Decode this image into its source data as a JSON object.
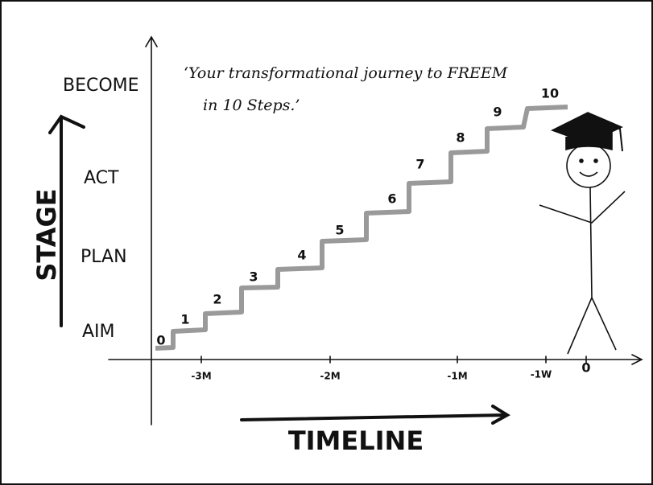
{
  "quote": [
    "‘Your transformational journey to FREEM",
    "in 10 Steps.’"
  ],
  "y_axis": {
    "title": "STAGE",
    "labels": [
      "BECOME",
      "ACT",
      "PLAN",
      "AIM"
    ]
  },
  "x_axis": {
    "title": "TIMELINE",
    "labels": [
      "-3M",
      "-2M",
      "-1M",
      "-1W",
      "0"
    ]
  },
  "steps": [
    "0",
    "1",
    "2",
    "3",
    "4",
    "5",
    "6",
    "7",
    "8",
    "9",
    "10"
  ]
}
